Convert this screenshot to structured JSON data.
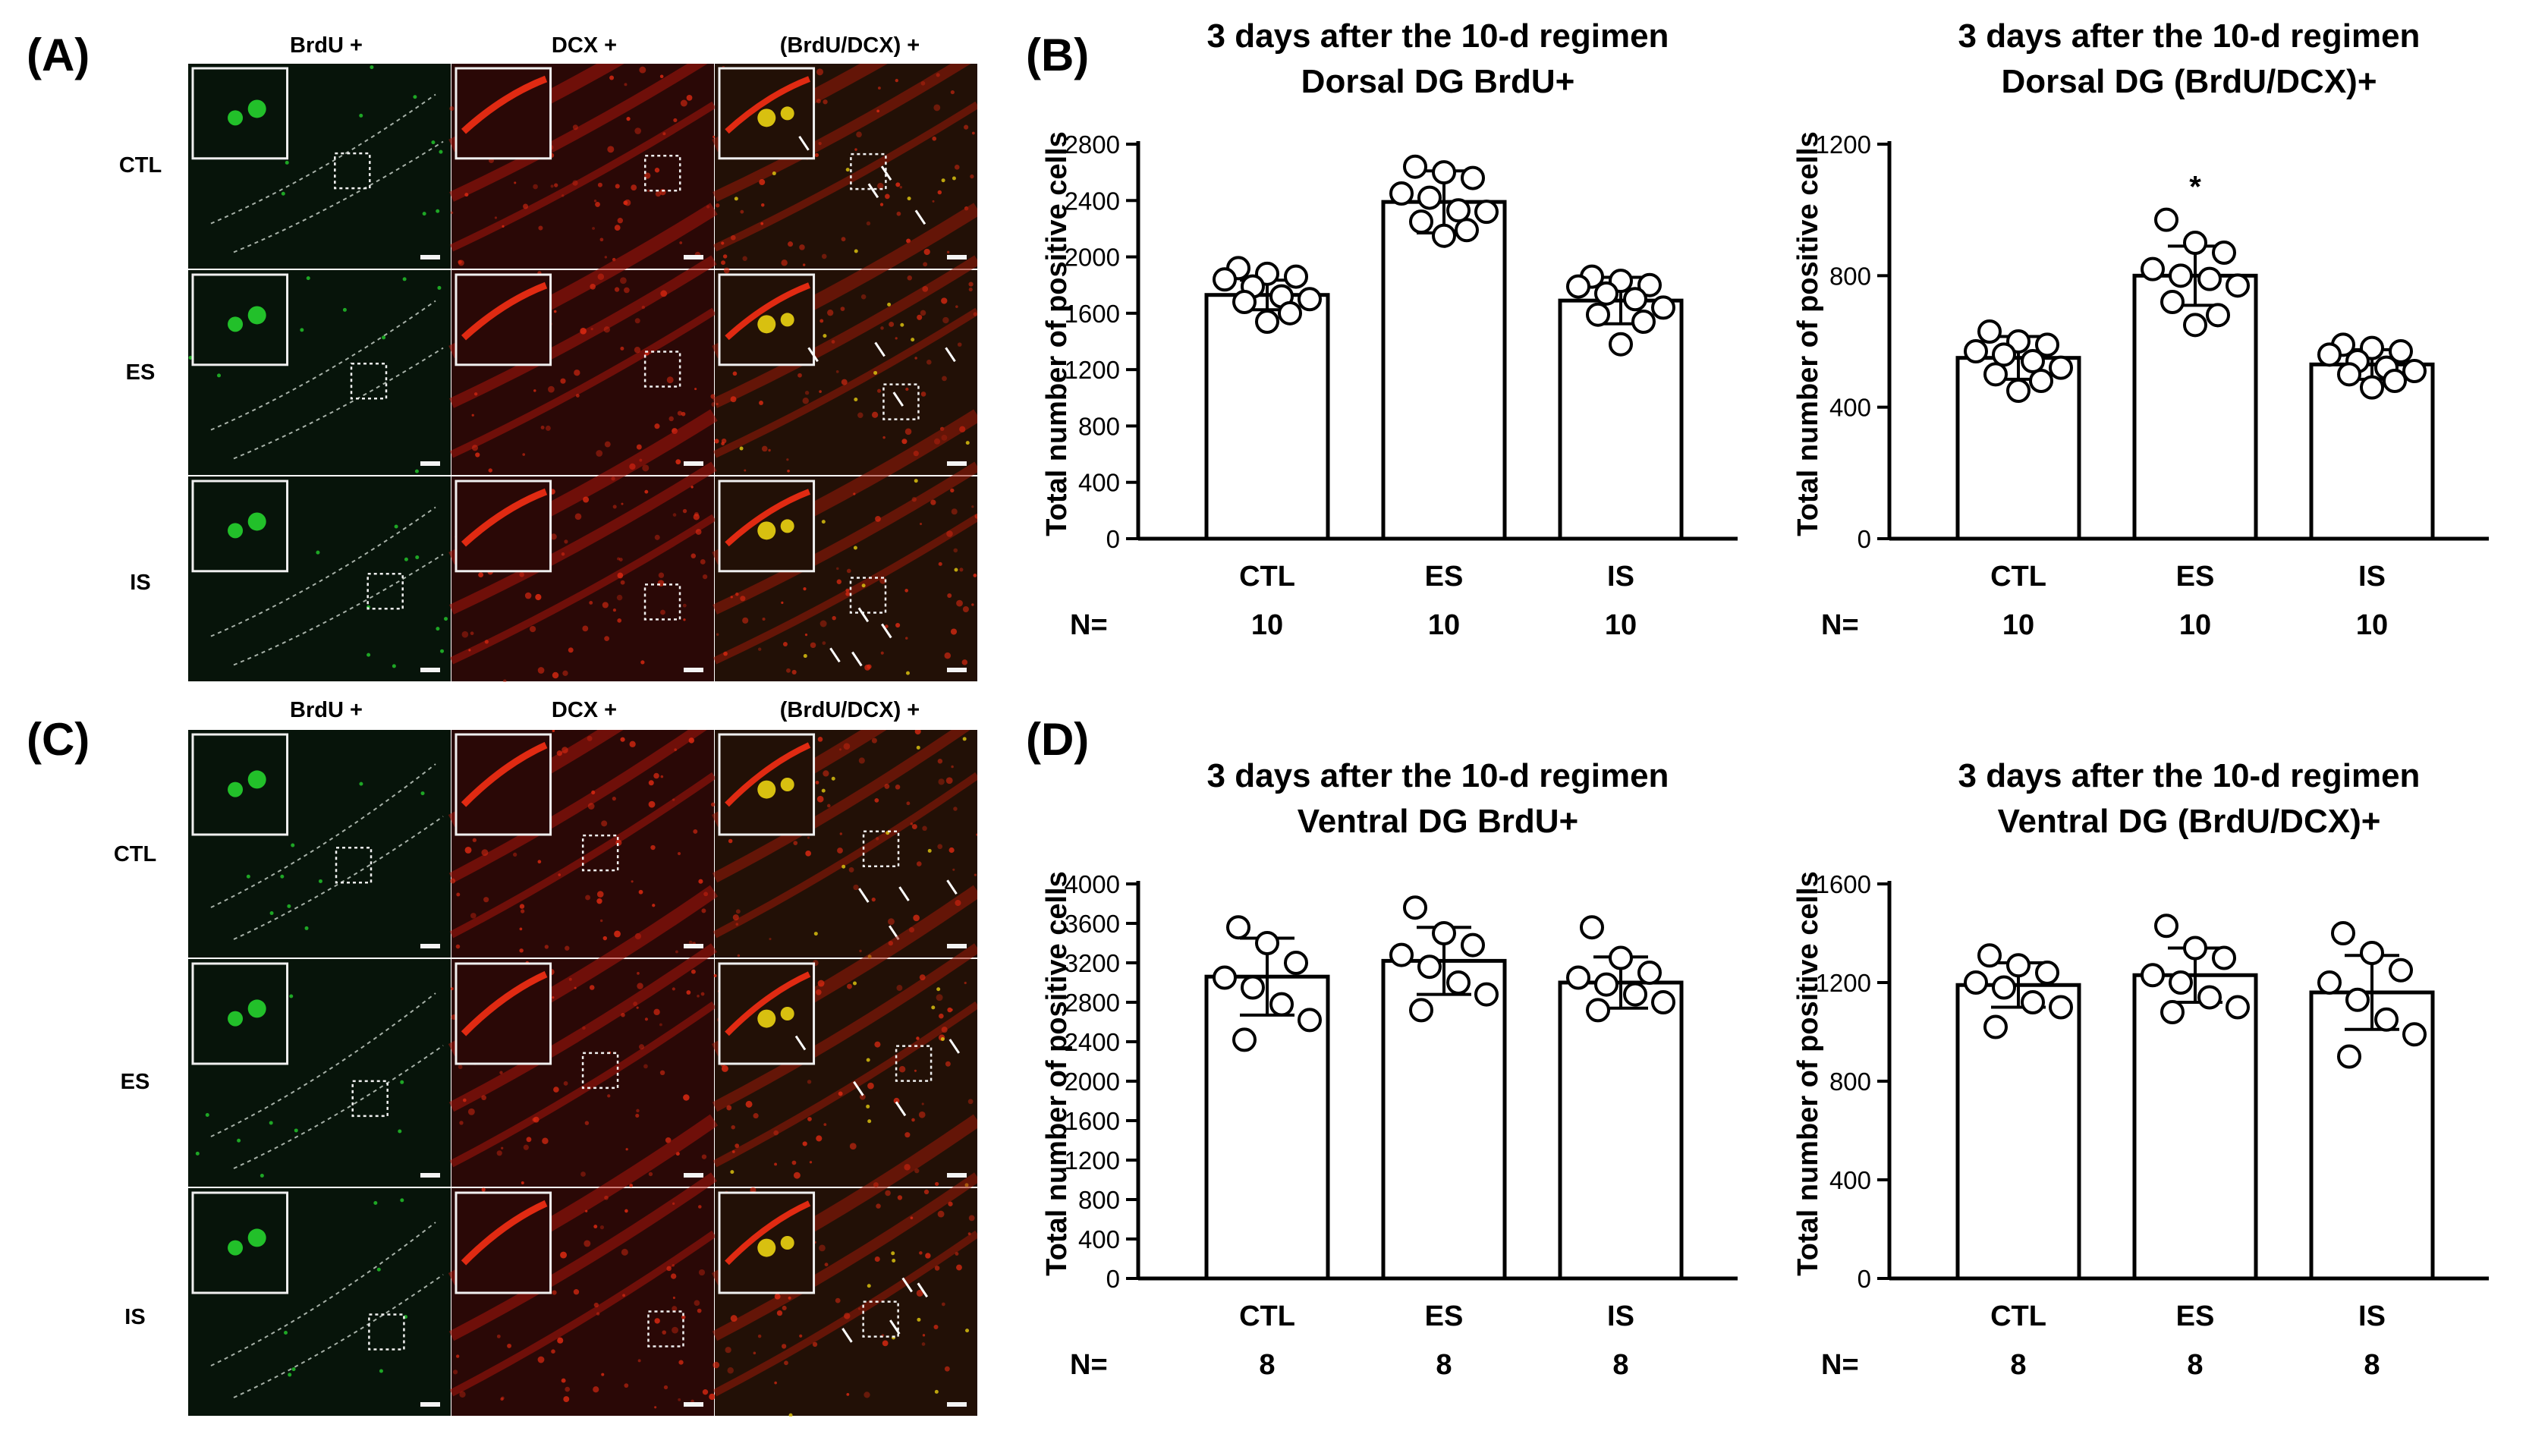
{
  "panel_labels": {
    "A": "(A)",
    "B": "(B)",
    "C": "(C)",
    "D": "(D)"
  },
  "micrographs": {
    "column_headers": [
      "BrdU +",
      "DCX +",
      "(BrdU/DCX) +"
    ],
    "row_labels": [
      "CTL",
      "ES",
      "IS"
    ],
    "channel_colors": {
      "brdu": "#22c02a",
      "dcx": "#e02a12",
      "merge": "#d8c010",
      "background": "#0b0d0b"
    }
  },
  "chart_data": [
    {
      "id": "B-left",
      "type": "bar",
      "title": [
        "3 days after the 10-d regimen",
        "Dorsal DG BrdU+"
      ],
      "ylabel": "Total number of positive cells",
      "categories": [
        "CTL",
        "ES",
        "IS"
      ],
      "values": [
        1730,
        2390,
        1690
      ],
      "errors": [
        105,
        220,
        165
      ],
      "points": [
        [
          1920,
          1880,
          1860,
          1840,
          1790,
          1720,
          1700,
          1680,
          1600,
          1540
        ],
        [
          2640,
          2600,
          2560,
          2450,
          2420,
          2330,
          2320,
          2250,
          2190,
          2150
        ],
        [
          1860,
          1830,
          1800,
          1790,
          1740,
          1700,
          1640,
          1590,
          1540,
          1380
        ]
      ],
      "ylim": [
        0,
        2800
      ],
      "yticks": [
        0,
        400,
        800,
        1200,
        1600,
        2000,
        2400,
        2800
      ],
      "n_label": "N=",
      "n": [
        "10",
        "10",
        "10"
      ],
      "annotations": []
    },
    {
      "id": "B-right",
      "type": "bar",
      "title": [
        "3 days after the 10-d regimen",
        "Dorsal DG (BrdU/DCX)+"
      ],
      "ylabel": "Total number of positive cells",
      "categories": [
        "CTL",
        "ES",
        "IS"
      ],
      "values": [
        550,
        800,
        530
      ],
      "errors": [
        65,
        90,
        45
      ],
      "points": [
        [
          630,
          600,
          590,
          570,
          560,
          540,
          520,
          500,
          480,
          450
        ],
        [
          970,
          900,
          870,
          820,
          800,
          790,
          770,
          720,
          680,
          650
        ],
        [
          590,
          580,
          570,
          560,
          540,
          520,
          510,
          500,
          480,
          460
        ]
      ],
      "ylim": [
        0,
        1200
      ],
      "yticks": [
        0,
        400,
        800,
        1200
      ],
      "n_label": "N=",
      "n": [
        "10",
        "10",
        "10"
      ],
      "annotations": [
        {
          "category": "ES",
          "text": "*"
        }
      ]
    },
    {
      "id": "D-left",
      "type": "bar",
      "title": [
        "3 days after the 10-d regimen",
        "Ventral DG BrdU+"
      ],
      "ylabel": "Total number of positive cells",
      "categories": [
        "CTL",
        "ES",
        "IS"
      ],
      "values": [
        3060,
        3220,
        3000
      ],
      "errors": [
        390,
        340,
        260
      ],
      "points": [
        [
          3560,
          3400,
          3200,
          3050,
          2950,
          2780,
          2620,
          2420
        ],
        [
          3760,
          3500,
          3380,
          3280,
          3160,
          3000,
          2880,
          2720
        ],
        [
          3560,
          3250,
          3100,
          3050,
          2980,
          2880,
          2800,
          2720
        ]
      ],
      "ylim": [
        0,
        4000
      ],
      "yticks": [
        0,
        400,
        800,
        1200,
        1600,
        2000,
        2400,
        2800,
        3200,
        3600,
        4000
      ],
      "n_label": "N=",
      "n": [
        "8",
        "8",
        "8"
      ],
      "annotations": []
    },
    {
      "id": "D-right",
      "type": "bar",
      "title": [
        "3 days after the 10-d regimen",
        "Ventral DG (BrdU/DCX)+"
      ],
      "ylabel": "Total number of positive cells",
      "categories": [
        "CTL",
        "ES",
        "IS"
      ],
      "values": [
        1190,
        1230,
        1160
      ],
      "errors": [
        90,
        110,
        150
      ],
      "points": [
        [
          1310,
          1270,
          1240,
          1200,
          1180,
          1120,
          1100,
          1020
        ],
        [
          1430,
          1340,
          1300,
          1230,
          1200,
          1140,
          1100,
          1080
        ],
        [
          1400,
          1320,
          1250,
          1200,
          1130,
          1050,
          990,
          900
        ]
      ],
      "ylim": [
        0,
        1600
      ],
      "yticks": [
        0,
        400,
        800,
        1200,
        1600
      ],
      "n_label": "N=",
      "n": [
        "8",
        "8",
        "8"
      ],
      "annotations": []
    }
  ]
}
